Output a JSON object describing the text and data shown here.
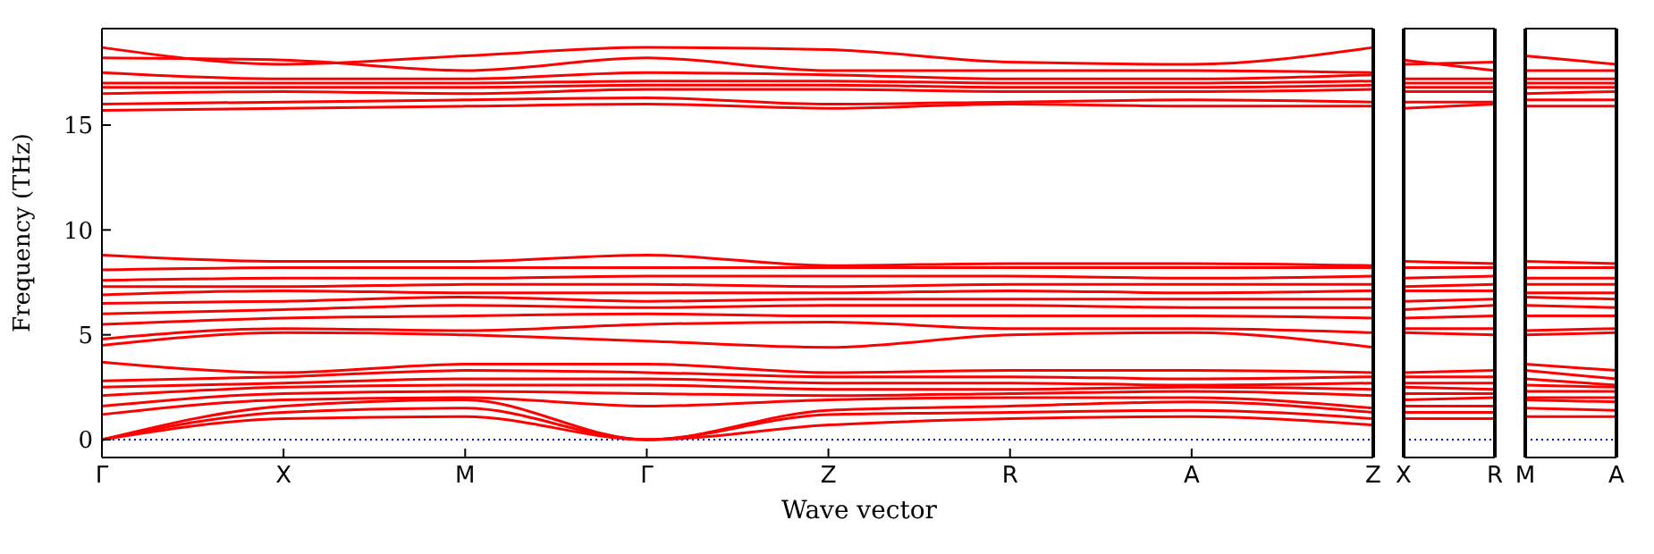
{
  "chart_data": [
    {
      "type": "line",
      "ylabel": "Frequency (THz)",
      "xlabel": "Wave vector",
      "marker": "none",
      "line_style": "solid",
      "categories": [
        "Γ",
        "X",
        "M",
        "Γ",
        "Z",
        "R",
        "A",
        "Z"
      ],
      "ylim": [
        -0.85,
        19.6
      ],
      "yticks": [
        0,
        5,
        10,
        15
      ],
      "ref_lines": [
        {
          "axis": "y",
          "value": 0,
          "color": "#0000ff",
          "line_style": "dotted"
        }
      ],
      "series": [
        {
          "color": "#ff0000",
          "values": [
            0,
            1.0,
            1.1,
            0,
            0.7,
            1.0,
            1.1,
            0.7
          ]
        },
        {
          "color": "#ff0000",
          "values": [
            0,
            1.3,
            1.5,
            0,
            1.2,
            1.3,
            1.4,
            1.0
          ]
        },
        {
          "color": "#ff0000",
          "values": [
            0,
            1.6,
            1.9,
            0,
            1.4,
            1.6,
            1.8,
            1.3
          ]
        },
        {
          "color": "#ff0000",
          "values": [
            1.2,
            1.9,
            2.0,
            1.6,
            1.9,
            2.0,
            2.0,
            1.5
          ]
        },
        {
          "color": "#ff0000",
          "values": [
            1.6,
            2.2,
            2.3,
            2.2,
            2.1,
            2.2,
            2.3,
            2.1
          ]
        },
        {
          "color": "#ff0000",
          "values": [
            2.1,
            2.5,
            2.6,
            2.6,
            2.4,
            2.4,
            2.5,
            2.4
          ]
        },
        {
          "color": "#ff0000",
          "values": [
            2.5,
            2.7,
            2.9,
            2.9,
            2.7,
            2.7,
            2.6,
            2.7
          ]
        },
        {
          "color": "#ff0000",
          "values": [
            2.8,
            3.0,
            3.3,
            3.2,
            3.0,
            3.0,
            2.9,
            3.0
          ]
        },
        {
          "color": "#ff0000",
          "values": [
            3.7,
            3.2,
            3.6,
            3.6,
            3.2,
            3.3,
            3.3,
            3.2
          ]
        },
        {
          "color": "#ff0000",
          "values": [
            4.5,
            5.1,
            5.0,
            4.7,
            4.4,
            5.0,
            5.1,
            4.4
          ]
        },
        {
          "color": "#ff0000",
          "values": [
            4.8,
            5.3,
            5.2,
            5.5,
            5.6,
            5.3,
            5.3,
            5.1
          ]
        },
        {
          "color": "#ff0000",
          "values": [
            5.5,
            5.8,
            5.9,
            6.0,
            5.9,
            5.9,
            5.9,
            5.8
          ]
        },
        {
          "color": "#ff0000",
          "values": [
            6.0,
            6.2,
            6.4,
            6.3,
            6.4,
            6.4,
            6.3,
            6.3
          ]
        },
        {
          "color": "#ff0000",
          "values": [
            6.5,
            6.6,
            6.8,
            6.6,
            6.7,
            6.7,
            6.7,
            6.7
          ]
        },
        {
          "color": "#ff0000",
          "values": [
            6.9,
            7.1,
            7.0,
            7.0,
            7.0,
            7.1,
            7.0,
            7.1
          ]
        },
        {
          "color": "#ff0000",
          "values": [
            7.3,
            7.3,
            7.4,
            7.4,
            7.3,
            7.4,
            7.4,
            7.4
          ]
        },
        {
          "color": "#ff0000",
          "values": [
            7.6,
            7.7,
            7.7,
            7.8,
            7.8,
            7.8,
            7.7,
            7.8
          ]
        },
        {
          "color": "#ff0000",
          "values": [
            8.1,
            8.2,
            8.2,
            8.2,
            8.2,
            8.2,
            8.2,
            8.2
          ]
        },
        {
          "color": "#ff0000",
          "values": [
            8.8,
            8.5,
            8.5,
            8.8,
            8.3,
            8.4,
            8.4,
            8.3
          ]
        },
        {
          "color": "#ff0000",
          "values": [
            15.7,
            15.8,
            15.9,
            16.0,
            15.8,
            16.0,
            15.9,
            15.9
          ]
        },
        {
          "color": "#ff0000",
          "values": [
            16.0,
            16.1,
            16.2,
            16.3,
            16.0,
            16.1,
            16.2,
            16.1
          ]
        },
        {
          "color": "#ff0000",
          "values": [
            16.5,
            16.6,
            16.5,
            16.7,
            16.7,
            16.6,
            16.6,
            16.7
          ]
        },
        {
          "color": "#ff0000",
          "values": [
            16.8,
            16.8,
            16.8,
            16.9,
            16.9,
            16.8,
            16.8,
            16.9
          ]
        },
        {
          "color": "#ff0000",
          "values": [
            17.0,
            17.0,
            17.0,
            17.1,
            17.1,
            17.0,
            17.0,
            17.1
          ]
        },
        {
          "color": "#ff0000",
          "values": [
            17.5,
            17.2,
            17.2,
            17.5,
            17.4,
            17.2,
            17.2,
            17.4
          ]
        },
        {
          "color": "#ff0000",
          "values": [
            18.2,
            18.1,
            17.6,
            18.2,
            17.6,
            17.6,
            17.6,
            17.5
          ]
        },
        {
          "color": "#ff0000",
          "values": [
            18.7,
            17.9,
            18.3,
            18.7,
            18.6,
            18.0,
            17.9,
            18.7
          ]
        }
      ]
    },
    {
      "type": "line",
      "marker": "none",
      "line_style": "solid",
      "tick_labels": "x",
      "categories": [
        "X",
        "R"
      ],
      "ylim": [
        -0.85,
        19.6
      ],
      "ref_lines": [
        {
          "axis": "y",
          "value": 0,
          "color": "#0000ff",
          "line_style": "dotted"
        }
      ],
      "series": [
        {
          "color": "#ff0000",
          "values": [
            1.0,
            1.0
          ]
        },
        {
          "color": "#ff0000",
          "values": [
            1.3,
            1.3
          ]
        },
        {
          "color": "#ff0000",
          "values": [
            1.6,
            1.6
          ]
        },
        {
          "color": "#ff0000",
          "values": [
            1.9,
            2.0
          ]
        },
        {
          "color": "#ff0000",
          "values": [
            2.2,
            2.2
          ]
        },
        {
          "color": "#ff0000",
          "values": [
            2.5,
            2.4
          ]
        },
        {
          "color": "#ff0000",
          "values": [
            2.7,
            2.7
          ]
        },
        {
          "color": "#ff0000",
          "values": [
            3.0,
            3.0
          ]
        },
        {
          "color": "#ff0000",
          "values": [
            3.2,
            3.3
          ]
        },
        {
          "color": "#ff0000",
          "values": [
            5.1,
            5.0
          ]
        },
        {
          "color": "#ff0000",
          "values": [
            5.3,
            5.3
          ]
        },
        {
          "color": "#ff0000",
          "values": [
            5.8,
            5.9
          ]
        },
        {
          "color": "#ff0000",
          "values": [
            6.2,
            6.4
          ]
        },
        {
          "color": "#ff0000",
          "values": [
            6.6,
            6.7
          ]
        },
        {
          "color": "#ff0000",
          "values": [
            7.1,
            7.1
          ]
        },
        {
          "color": "#ff0000",
          "values": [
            7.3,
            7.4
          ]
        },
        {
          "color": "#ff0000",
          "values": [
            7.7,
            7.8
          ]
        },
        {
          "color": "#ff0000",
          "values": [
            8.2,
            8.2
          ]
        },
        {
          "color": "#ff0000",
          "values": [
            8.5,
            8.4
          ]
        },
        {
          "color": "#ff0000",
          "values": [
            15.8,
            16.0
          ]
        },
        {
          "color": "#ff0000",
          "values": [
            16.1,
            16.1
          ]
        },
        {
          "color": "#ff0000",
          "values": [
            16.6,
            16.6
          ]
        },
        {
          "color": "#ff0000",
          "values": [
            16.8,
            16.8
          ]
        },
        {
          "color": "#ff0000",
          "values": [
            17.0,
            17.0
          ]
        },
        {
          "color": "#ff0000",
          "values": [
            17.2,
            17.2
          ]
        },
        {
          "color": "#ff0000",
          "values": [
            18.1,
            17.6
          ]
        },
        {
          "color": "#ff0000",
          "values": [
            17.9,
            18.0
          ]
        }
      ]
    },
    {
      "type": "line",
      "marker": "none",
      "line_style": "solid",
      "tick_labels": "x",
      "categories": [
        "M",
        "A"
      ],
      "ylim": [
        -0.85,
        19.6
      ],
      "ref_lines": [
        {
          "axis": "y",
          "value": 0,
          "color": "#0000ff",
          "line_style": "dotted"
        }
      ],
      "series": [
        {
          "color": "#ff0000",
          "values": [
            1.1,
            1.1
          ]
        },
        {
          "color": "#ff0000",
          "values": [
            1.5,
            1.4
          ]
        },
        {
          "color": "#ff0000",
          "values": [
            1.9,
            1.8
          ]
        },
        {
          "color": "#ff0000",
          "values": [
            2.0,
            2.0
          ]
        },
        {
          "color": "#ff0000",
          "values": [
            2.3,
            2.3
          ]
        },
        {
          "color": "#ff0000",
          "values": [
            2.6,
            2.5
          ]
        },
        {
          "color": "#ff0000",
          "values": [
            2.9,
            2.6
          ]
        },
        {
          "color": "#ff0000",
          "values": [
            3.3,
            2.9
          ]
        },
        {
          "color": "#ff0000",
          "values": [
            3.6,
            3.3
          ]
        },
        {
          "color": "#ff0000",
          "values": [
            5.0,
            5.1
          ]
        },
        {
          "color": "#ff0000",
          "values": [
            5.2,
            5.3
          ]
        },
        {
          "color": "#ff0000",
          "values": [
            5.9,
            5.9
          ]
        },
        {
          "color": "#ff0000",
          "values": [
            6.4,
            6.3
          ]
        },
        {
          "color": "#ff0000",
          "values": [
            6.8,
            6.7
          ]
        },
        {
          "color": "#ff0000",
          "values": [
            7.0,
            7.0
          ]
        },
        {
          "color": "#ff0000",
          "values": [
            7.4,
            7.4
          ]
        },
        {
          "color": "#ff0000",
          "values": [
            7.7,
            7.7
          ]
        },
        {
          "color": "#ff0000",
          "values": [
            8.2,
            8.2
          ]
        },
        {
          "color": "#ff0000",
          "values": [
            8.5,
            8.4
          ]
        },
        {
          "color": "#ff0000",
          "values": [
            15.9,
            15.9
          ]
        },
        {
          "color": "#ff0000",
          "values": [
            16.2,
            16.2
          ]
        },
        {
          "color": "#ff0000",
          "values": [
            16.5,
            16.6
          ]
        },
        {
          "color": "#ff0000",
          "values": [
            16.8,
            16.8
          ]
        },
        {
          "color": "#ff0000",
          "values": [
            17.0,
            17.0
          ]
        },
        {
          "color": "#ff0000",
          "values": [
            17.2,
            17.2
          ]
        },
        {
          "color": "#ff0000",
          "values": [
            17.6,
            17.6
          ]
        },
        {
          "color": "#ff0000",
          "values": [
            18.3,
            17.9
          ]
        }
      ]
    }
  ]
}
